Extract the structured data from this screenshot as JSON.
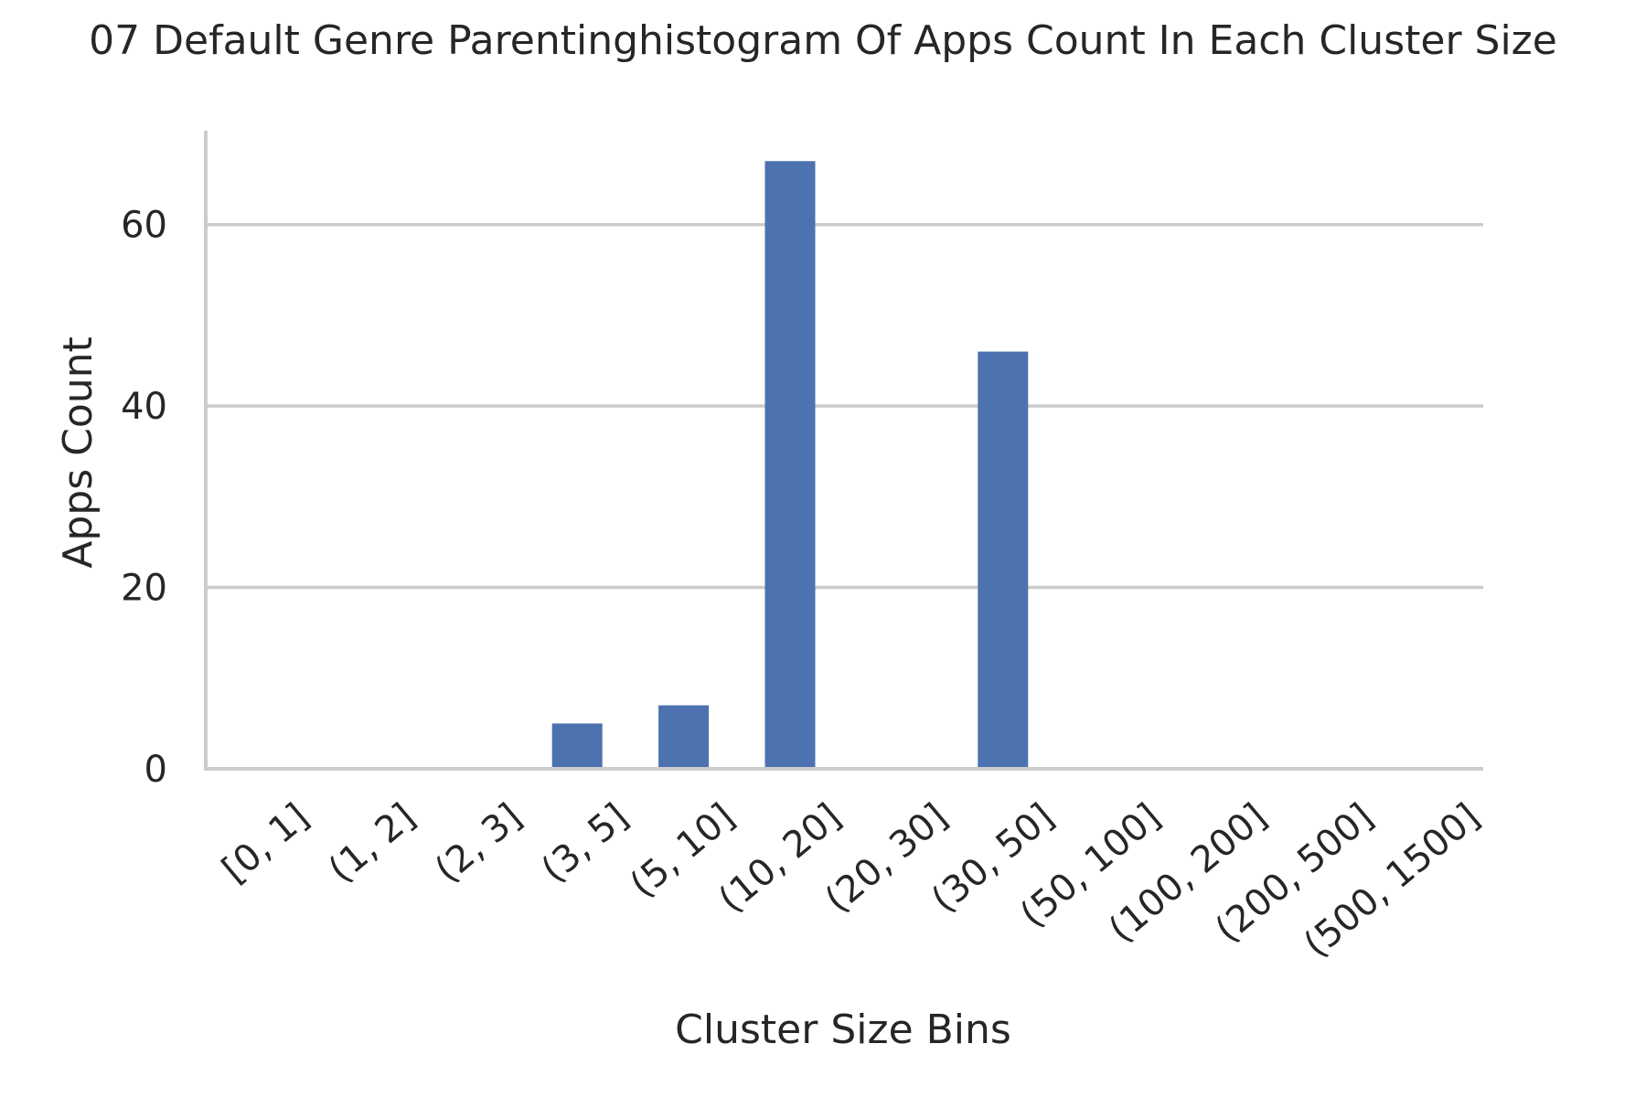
{
  "chart_data": {
    "type": "bar",
    "title": "07 Default Genre Parentinghistogram Of Apps Count In Each Cluster Size",
    "xlabel": "Cluster Size Bins",
    "ylabel": "Apps Count",
    "categories": [
      "[0, 1]",
      "(1, 2]",
      "(2, 3]",
      "(3, 5]",
      "(5, 10]",
      "(10, 20]",
      "(20, 30]",
      "(30, 50]",
      "(50, 100]",
      "(100, 200]",
      "(200, 500]",
      "(500, 1500]"
    ],
    "values": [
      0,
      0,
      0,
      5,
      7,
      67,
      0,
      46,
      0,
      0,
      0,
      0
    ],
    "yticks": [
      0,
      20,
      40,
      60
    ],
    "ylim": [
      0,
      70.35
    ],
    "grid": "horizontal",
    "bar_color": "#4c72b0",
    "legend": "none"
  }
}
